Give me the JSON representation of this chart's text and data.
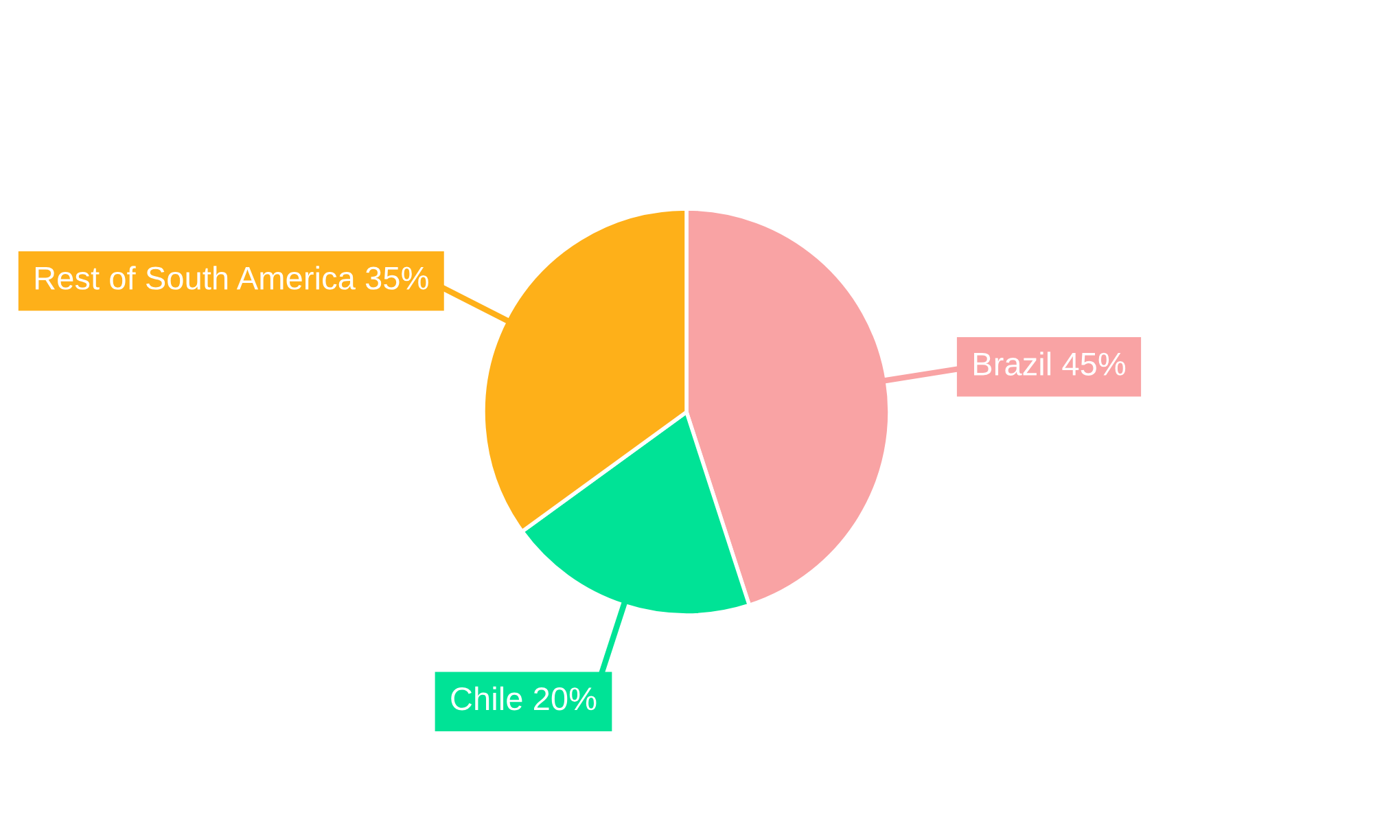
{
  "chart_data": {
    "type": "pie",
    "categories": [
      "Brazil",
      "Chile",
      "Rest of South America"
    ],
    "values": [
      45,
      20,
      35
    ],
    "value_labels": [
      "45%",
      "20%",
      "35%"
    ],
    "colors": [
      "#f9a3a4",
      "#00e396",
      "#feb019"
    ],
    "legend": false
  }
}
